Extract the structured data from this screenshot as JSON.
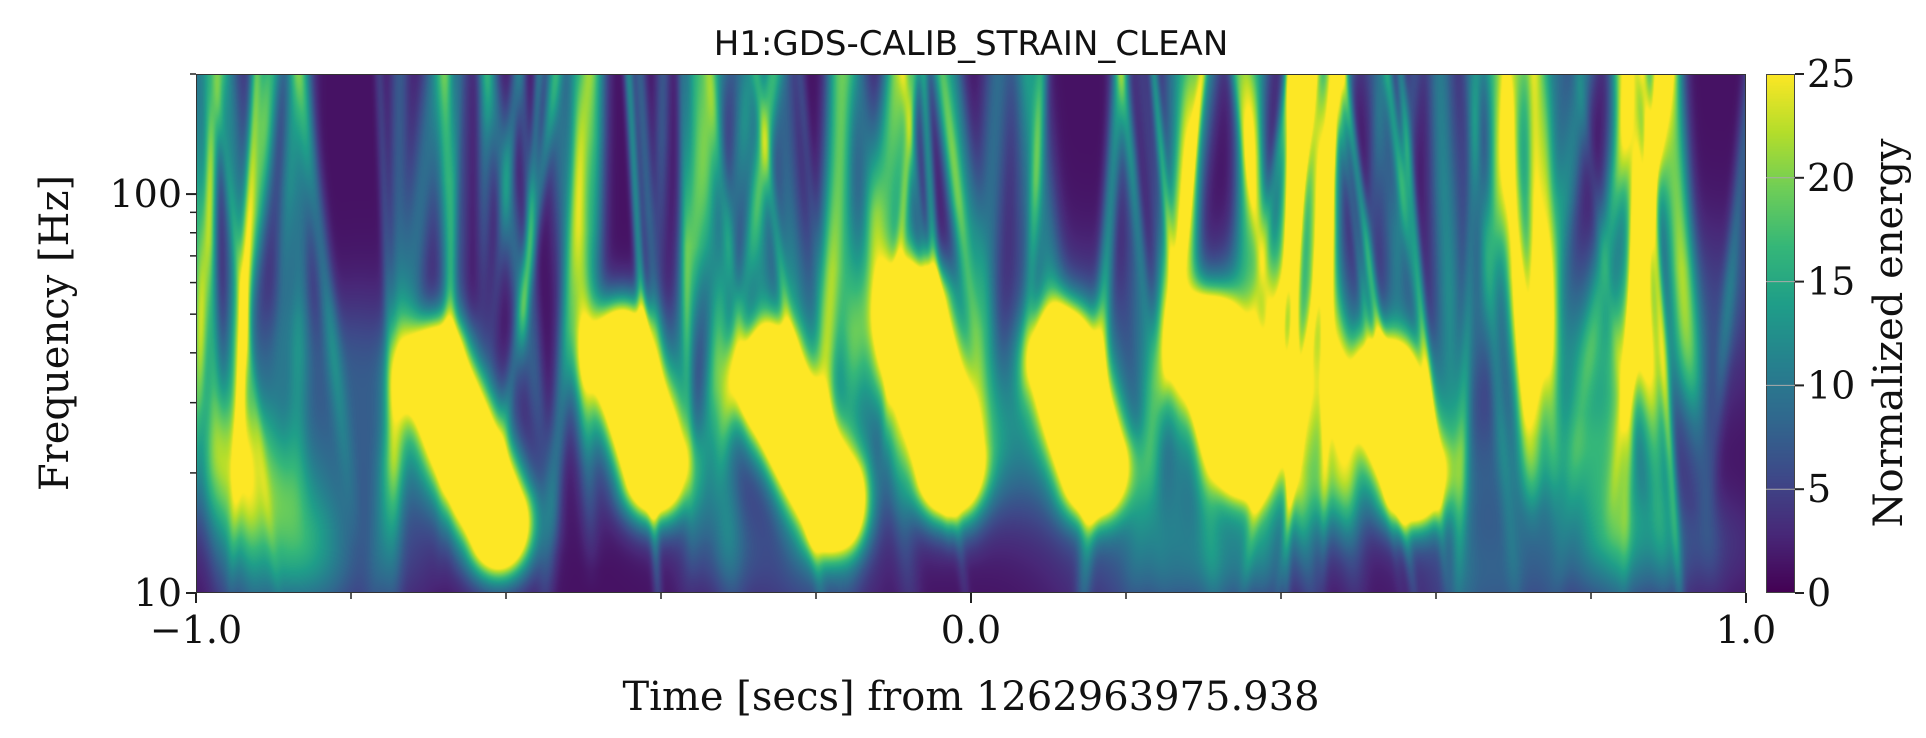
{
  "chart_data": {
    "type": "heatmap",
    "title": "H1:GDS-CALIB_STRAIN_CLEAN",
    "xlabel": "Time [secs] from 1262963975.938",
    "ylabel": "Frequency [Hz]",
    "colorbar_label": "Normalized energy",
    "xlim": [
      -1.0,
      1.0
    ],
    "ylim": [
      10,
      200
    ],
    "yscale": "log",
    "xticks": [
      -1.0,
      0.0,
      1.0
    ],
    "xtick_labels": [
      "−1.0",
      "0.0",
      "1.0"
    ],
    "xminor_ticks": [
      -0.8,
      -0.6,
      -0.4,
      -0.2,
      0.2,
      0.4,
      0.6,
      0.8
    ],
    "yticks": [
      10,
      100
    ],
    "ytick_labels": [
      "10",
      "100"
    ],
    "clim": [
      0,
      25
    ],
    "colorbar_ticks": [
      0,
      5,
      10,
      15,
      20,
      25
    ],
    "colorbar_tick_labels": [
      "0",
      "5",
      "10",
      "15",
      "20",
      "25"
    ],
    "colormap": "viridis",
    "grid": false,
    "high_energy_clusters": [
      {
        "t_start": -0.69,
        "f_start": 35,
        "t_end": -0.61,
        "f_end": 15,
        "energy": 25
      },
      {
        "t_start": -0.45,
        "f_start": 39,
        "t_end": -0.41,
        "f_end": 21,
        "energy": 25
      },
      {
        "t_start": -0.26,
        "f_start": 34,
        "t_end": -0.18,
        "f_end": 17,
        "energy": 25
      },
      {
        "t_start": -0.07,
        "f_start": 49,
        "t_end": -0.03,
        "f_end": 21,
        "energy": 25
      },
      {
        "t_start": 0.12,
        "f_start": 38,
        "t_end": 0.16,
        "f_end": 21,
        "energy": 25
      },
      {
        "t_start": 0.31,
        "f_start": 41,
        "t_end": 0.35,
        "f_end": 24,
        "energy": 25
      },
      {
        "t_start": 0.54,
        "f_start": 31,
        "t_end": 0.57,
        "f_end": 20,
        "energy": 25
      }
    ],
    "moderate_energy_regions": [
      {
        "t_start": -0.94,
        "f_start": 20,
        "t_end": -0.88,
        "f_end": 13,
        "energy": 12
      },
      {
        "t_start": 0.43,
        "f_start": 30,
        "t_end": 0.45,
        "f_end": 20,
        "energy": 11
      },
      {
        "t_start": 0.8,
        "f_start": 22,
        "t_end": 0.83,
        "f_end": 15,
        "energy": 11
      }
    ]
  }
}
